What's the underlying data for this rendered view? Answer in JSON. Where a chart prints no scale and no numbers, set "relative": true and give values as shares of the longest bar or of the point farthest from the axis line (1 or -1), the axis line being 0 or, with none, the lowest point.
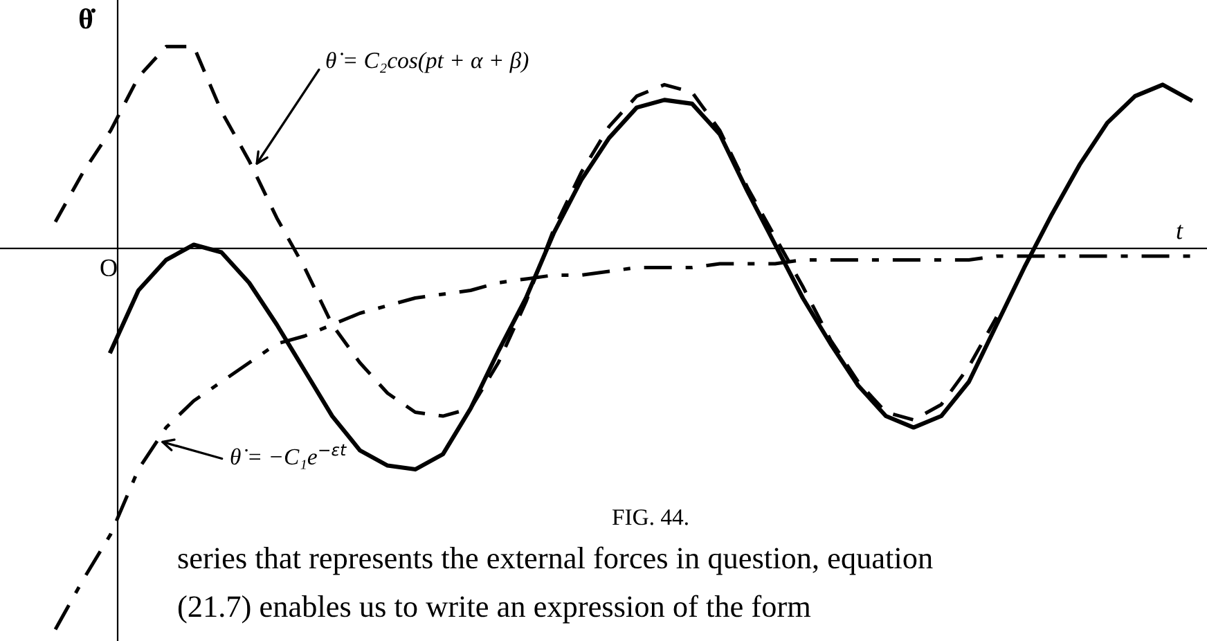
{
  "chart_data": {
    "type": "line",
    "relative": true,
    "ylabel": "θ̇",
    "xlabel": "t",
    "marker": "none",
    "categories": [
      null,
      null,
      null,
      null,
      null,
      null,
      null,
      null,
      null,
      null,
      null,
      null,
      null,
      null,
      null,
      null,
      null,
      null,
      null,
      null,
      null,
      null,
      null,
      null,
      null,
      null,
      null,
      null,
      null,
      null,
      null,
      null,
      null,
      null,
      null,
      null,
      null,
      null,
      null,
      null,
      null,
      null,
      null
    ],
    "series": [
      {
        "color": "#000000",
        "line_style": "dashed",
        "values": [
          null,
          0.07,
          0.2,
          0.31,
          0.45,
          0.53,
          0.53,
          0.36,
          0.23,
          0.08,
          -0.05,
          -0.2,
          -0.3,
          -0.38,
          -0.43,
          -0.44,
          -0.42,
          -0.3,
          -0.14,
          0.05,
          0.2,
          0.32,
          0.4,
          0.43,
          0.41,
          0.31,
          0.16,
          0.03,
          -0.1,
          -0.24,
          -0.35,
          -0.43,
          -0.45,
          -0.41,
          -0.31,
          -0.18,
          null,
          null,
          null,
          null,
          null,
          null,
          null
        ]
      },
      {
        "color": "#000000",
        "line_style": "solid",
        "values": [
          null,
          null,
          null,
          -0.27,
          -0.11,
          -0.03,
          0.01,
          -0.01,
          -0.09,
          -0.2,
          -0.32,
          -0.44,
          -0.53,
          -0.57,
          -0.58,
          -0.54,
          -0.42,
          -0.27,
          -0.13,
          0.04,
          0.18,
          0.29,
          0.37,
          0.39,
          0.38,
          0.3,
          0.15,
          0.01,
          -0.13,
          -0.25,
          -0.36,
          -0.44,
          -0.47,
          -0.44,
          -0.35,
          -0.2,
          -0.05,
          0.09,
          0.22,
          0.33,
          0.4,
          0.43,
          0.39
        ]
      },
      {
        "color": "#000000",
        "line_style": "dashdot",
        "values": [
          null,
          -1,
          -0.87,
          -0.75,
          -0.58,
          -0.47,
          -0.4,
          -0.35,
          -0.3,
          -0.25,
          -0.23,
          -0.2,
          -0.17,
          -0.15,
          -0.13,
          -0.12,
          -0.11,
          -0.09,
          -0.08,
          -0.07,
          -0.07,
          -0.06,
          -0.05,
          -0.05,
          -0.05,
          -0.04,
          -0.04,
          -0.04,
          -0.03,
          -0.03,
          -0.03,
          -0.03,
          -0.03,
          -0.03,
          -0.03,
          -0.02,
          -0.02,
          -0.02,
          -0.02,
          -0.02,
          -0.02,
          -0.02,
          -0.02
        ]
      }
    ],
    "annotations": [
      "θ̇ = C₂cos(pt + α + β)",
      "θ̇ = −C₁e$^{−εt}$",
      "O",
      "FIG. 44.",
      "series that represents the external forces in question, equation",
      "(21.7) enables us to write an expression of the form"
    ]
  }
}
